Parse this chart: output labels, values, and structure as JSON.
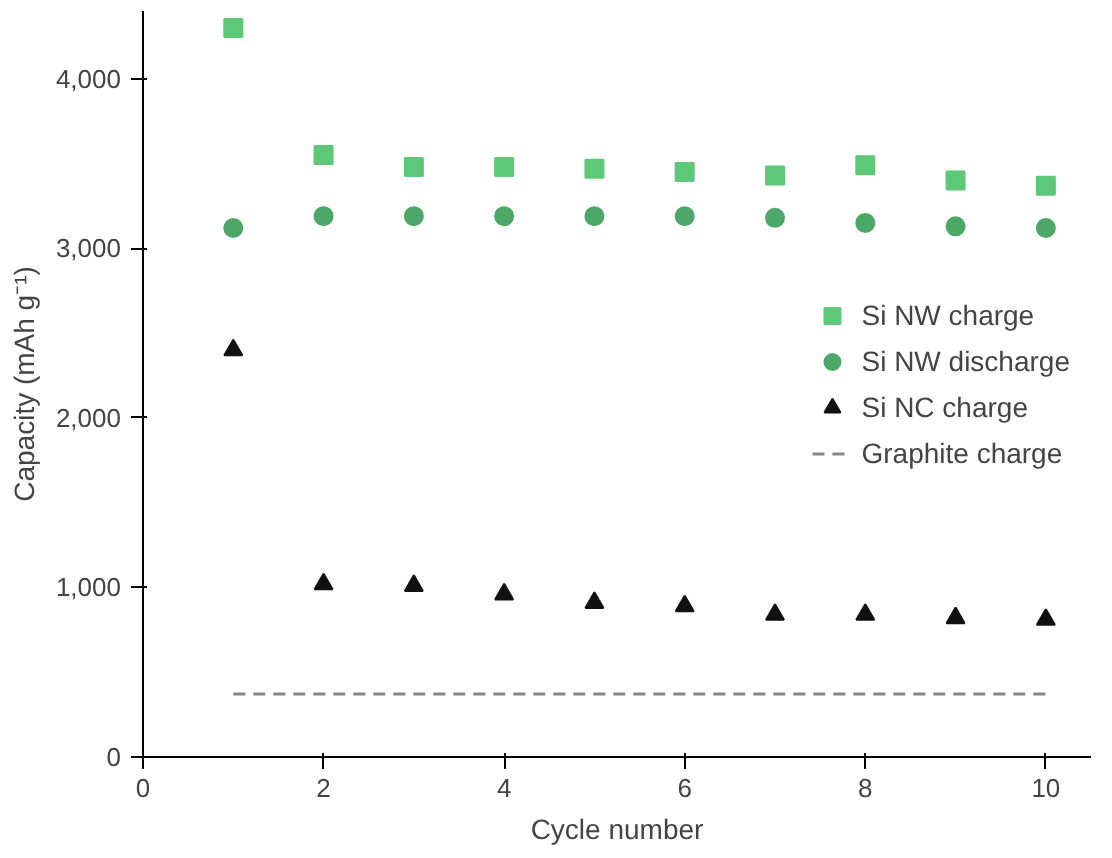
{
  "chart_data": {
    "type": "scatter",
    "xlabel": "Cycle number",
    "ylabel": "Capacity (mAh g⁻¹)",
    "x": [
      1,
      2,
      3,
      4,
      5,
      6,
      7,
      8,
      9,
      10
    ],
    "xlim": [
      0,
      10.5
    ],
    "xticks": [
      0,
      2,
      4,
      6,
      8,
      10
    ],
    "ylim": [
      0,
      4400
    ],
    "yticks": [
      0,
      {
        "value": 1000,
        "label": "1,000"
      },
      {
        "value": 2000,
        "label": "2,000"
      },
      {
        "value": 3000,
        "label": "3,000"
      },
      {
        "value": 4000,
        "label": "4,000"
      }
    ],
    "grid": false,
    "legend": "right",
    "series": [
      {
        "name": "Si NW charge",
        "color": "#5cc878",
        "marker": "square",
        "values": [
          4300,
          3550,
          3480,
          3480,
          3470,
          3450,
          3430,
          3490,
          3400,
          3370
        ]
      },
      {
        "name": "Si NW discharge",
        "color": "#4ca868",
        "marker": "circle",
        "values": [
          3120,
          3190,
          3190,
          3190,
          3190,
          3190,
          3180,
          3150,
          3130,
          3120
        ]
      },
      {
        "name": "Si NC charge",
        "color": "#111111",
        "marker": "triangle",
        "values": [
          2400,
          1020,
          1010,
          960,
          910,
          890,
          840,
          840,
          820,
          810
        ]
      },
      {
        "name": "Graphite charge",
        "type": "line",
        "color": "#888888",
        "marker": "none",
        "line_style": "dashed",
        "values": [
          372,
          372,
          372,
          372,
          372,
          372,
          372,
          372,
          372,
          372
        ]
      }
    ]
  }
}
